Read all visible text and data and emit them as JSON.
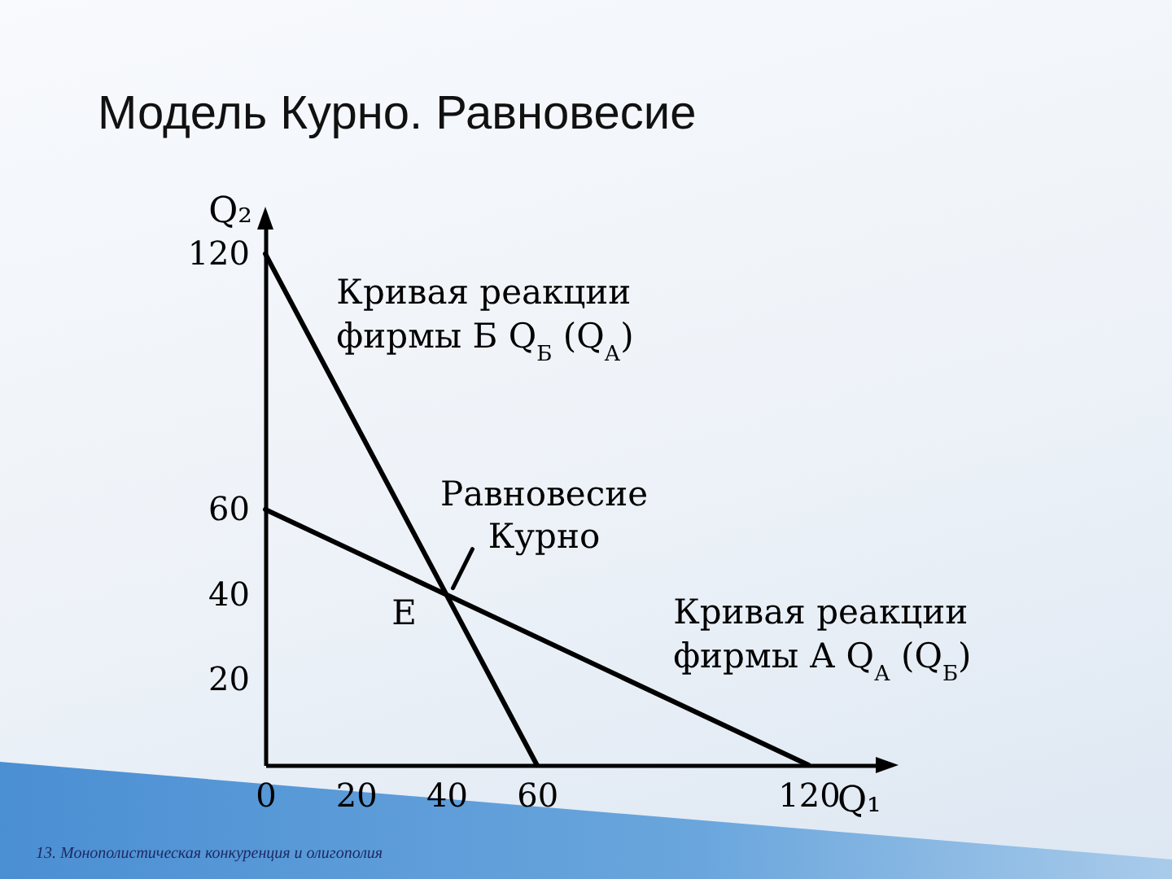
{
  "chart_data": {
    "type": "line",
    "title": "Модель Курно. Равновесие",
    "xlabel": "Q₁",
    "ylabel": "Q₂",
    "series": [
      {
        "name": "Кривая реакции фирмы Б Q$_{Б}$ (Q$_{А}$)",
        "color": "#000000",
        "x": [
          0,
          60
        ],
        "values": [
          120,
          0
        ]
      },
      {
        "name": "Кривая реакции фирмы А Q$_{А}$ (Q$_{Б}$)",
        "color": "#000000",
        "x": [
          0,
          120
        ],
        "values": [
          60,
          0
        ]
      }
    ],
    "xlim": [
      0,
      137
    ],
    "ylim": [
      0,
      128
    ],
    "xticks": [
      0,
      20,
      40,
      60,
      120
    ],
    "yticks": [
      20,
      40,
      60,
      120
    ],
    "grid": false,
    "legend": false,
    "marker": "none",
    "line_style": "solid",
    "annotations": [
      {
        "text": "E",
        "x": 40,
        "y": 40
      },
      {
        "text": "Равновесие Курно",
        "x": 40,
        "y": 40
      },
      "13. Монополистическая конкуренция и олигополия"
    ]
  }
}
